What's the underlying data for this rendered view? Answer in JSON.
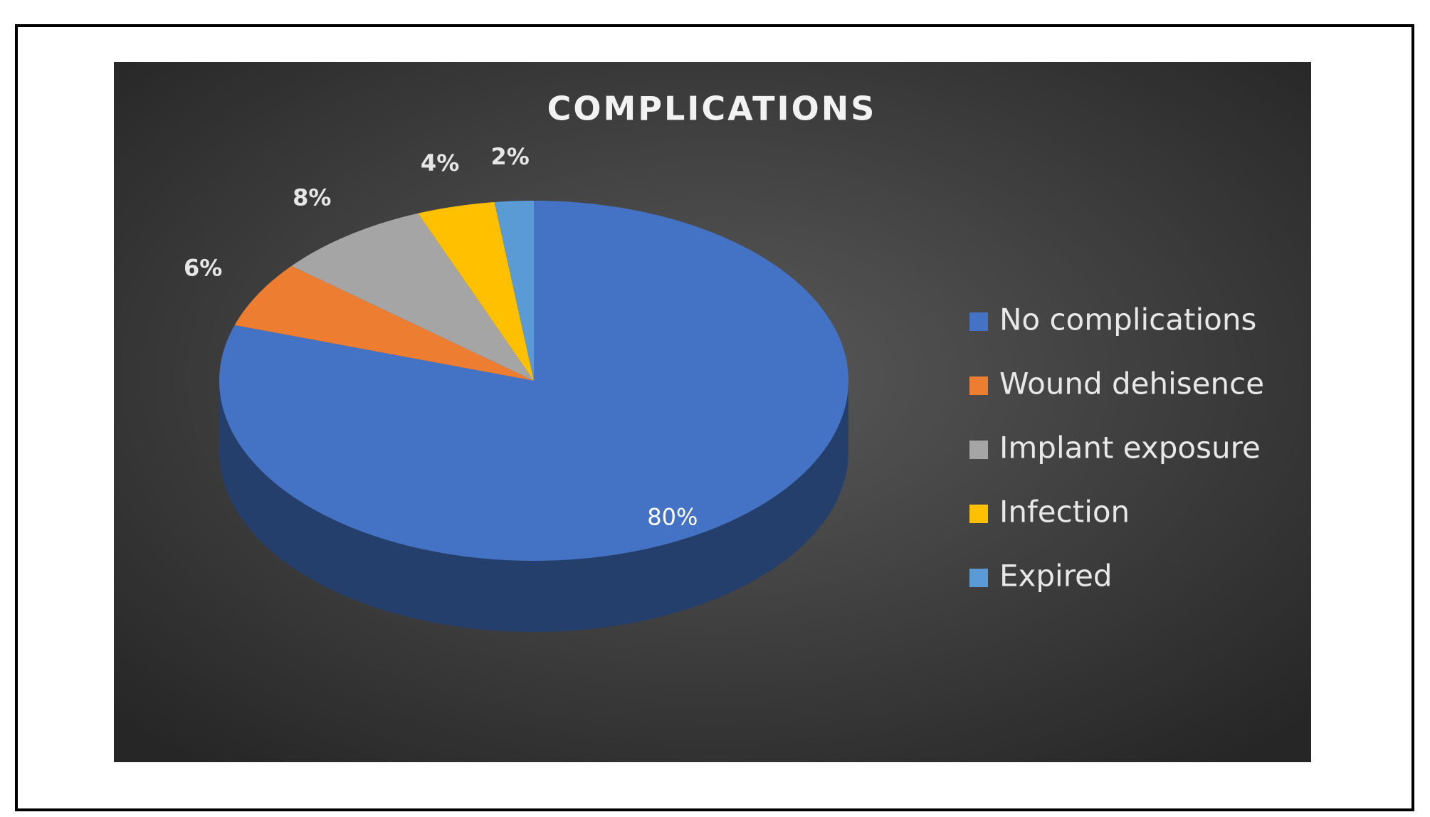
{
  "chart_data": {
    "type": "pie",
    "title": "COMPLICATIONS",
    "categories": [
      "No complications",
      "Wound dehisence",
      "Implant exposure",
      "Infection",
      "Expired"
    ],
    "values": [
      80,
      6,
      8,
      4,
      2
    ],
    "value_labels": [
      "80%",
      "6%",
      "8%",
      "4%",
      "2%"
    ],
    "colors": [
      "#4472c4",
      "#ed7d31",
      "#a5a5a5",
      "#ffc000",
      "#5b9bd5"
    ],
    "legend": "right"
  }
}
